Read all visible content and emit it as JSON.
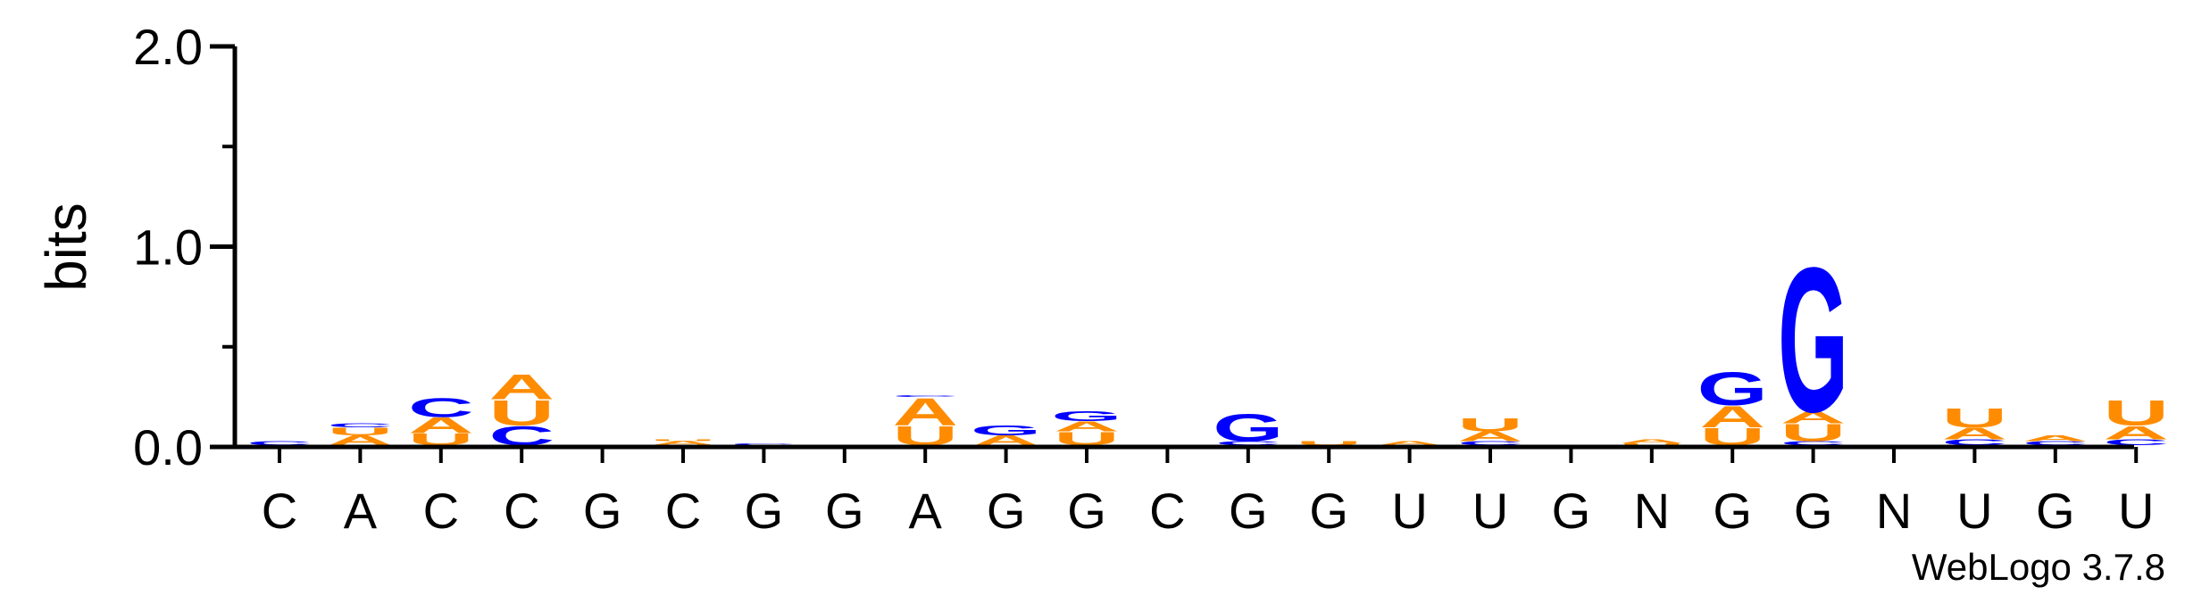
{
  "chart_data": {
    "type": "sequence-logo",
    "ylabel": "bits",
    "ylim": [
      0,
      2.0
    ],
    "yticks": [
      "0.0",
      "1.0",
      "2.0"
    ],
    "consensus": [
      "C",
      "A",
      "C",
      "C",
      "G",
      "C",
      "G",
      "G",
      "A",
      "G",
      "G",
      "C",
      "G",
      "G",
      "U",
      "U",
      "G",
      "N",
      "G",
      "G",
      "N",
      "U",
      "G",
      "U"
    ],
    "colors": {
      "A": "#ff8c00",
      "U": "#ff8c00",
      "C": "#0000ff",
      "G": "#0000ff"
    },
    "stacks": [
      [
        [
          "C",
          0.02
        ]
      ],
      [
        [
          "A",
          0.05
        ],
        [
          "U",
          0.04
        ],
        [
          "C",
          0.02
        ]
      ],
      [
        [
          "U",
          0.06
        ],
        [
          "A",
          0.08
        ],
        [
          "C",
          0.1
        ]
      ],
      [
        [
          "C",
          0.1
        ],
        [
          "U",
          0.13
        ],
        [
          "A",
          0.13
        ]
      ],
      [],
      [
        [
          "A",
          0.02
        ],
        [
          "U",
          0.01
        ]
      ],
      [
        [
          "C",
          0.01
        ]
      ],
      [],
      [
        [
          "U",
          0.1
        ],
        [
          "A",
          0.14
        ],
        [
          "C",
          0.01
        ]
      ],
      [
        [
          "A",
          0.05
        ],
        [
          "G",
          0.05
        ]
      ],
      [
        [
          "U",
          0.07
        ],
        [
          "A",
          0.05
        ],
        [
          "G",
          0.05
        ]
      ],
      [],
      [
        [
          "C",
          0.02
        ],
        [
          "G",
          0.14
        ]
      ],
      [
        [
          "U",
          0.02
        ]
      ],
      [
        [
          "A",
          0.02
        ]
      ],
      [
        [
          "C",
          0.02
        ],
        [
          "A",
          0.05
        ],
        [
          "U",
          0.07
        ]
      ],
      [],
      [
        [
          "U",
          0.01
        ],
        [
          "A",
          0.02
        ]
      ],
      [
        [
          "U",
          0.09
        ],
        [
          "A",
          0.11
        ],
        [
          "G",
          0.17
        ]
      ],
      [
        [
          "C",
          0.02
        ],
        [
          "U",
          0.09
        ],
        [
          "A",
          0.06
        ],
        [
          "G",
          0.75
        ]
      ],
      [],
      [
        [
          "C",
          0.03
        ],
        [
          "A",
          0.06
        ],
        [
          "U",
          0.1
        ]
      ],
      [
        [
          "C",
          0.02
        ],
        [
          "A",
          0.03
        ]
      ],
      [
        [
          "C",
          0.03
        ],
        [
          "A",
          0.07
        ],
        [
          "U",
          0.13
        ]
      ]
    ]
  },
  "footer": {
    "version": "WebLogo 3.7.8"
  }
}
